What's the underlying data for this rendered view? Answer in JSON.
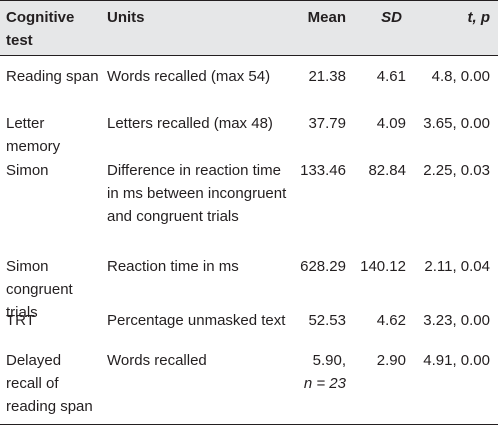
{
  "headers": {
    "test": "Cognitive test",
    "units": "Units",
    "mean": "Mean",
    "sd": "SD",
    "tp": "t, p"
  },
  "rows": [
    {
      "test": "Reading span",
      "units": "Words recalled (max 54)",
      "mean": "21.38",
      "mean_note": "",
      "sd": "4.61",
      "tp": "4.8, 0.00"
    },
    {
      "test": "Letter memory",
      "units": "Letters recalled (max 48)",
      "mean": "37.79",
      "mean_note": "",
      "sd": "4.09",
      "tp": "3.65, 0.00"
    },
    {
      "test": "Simon",
      "units": "Difference in reaction time in ms between incongruent and congruent trials",
      "mean": "133.46",
      "mean_note": "",
      "sd": "82.84",
      "tp": "2.25, 0.03"
    },
    {
      "test": "Simon congruent trials",
      "units": "Reaction time in ms",
      "mean": "628.29",
      "mean_note": "",
      "sd": "140.12",
      "tp": "2.11, 0.04"
    },
    {
      "test": "TRT",
      "units": "Percentage unmasked text",
      "mean": "52.53",
      "mean_note": "",
      "sd": "4.62",
      "tp": "3.23, 0.00"
    },
    {
      "test": "Delayed recall of reading span",
      "units": "Words recalled",
      "mean": "5.90,",
      "mean_note": "n = 23",
      "sd": "2.90",
      "tp": "4.91, 0.00"
    }
  ]
}
